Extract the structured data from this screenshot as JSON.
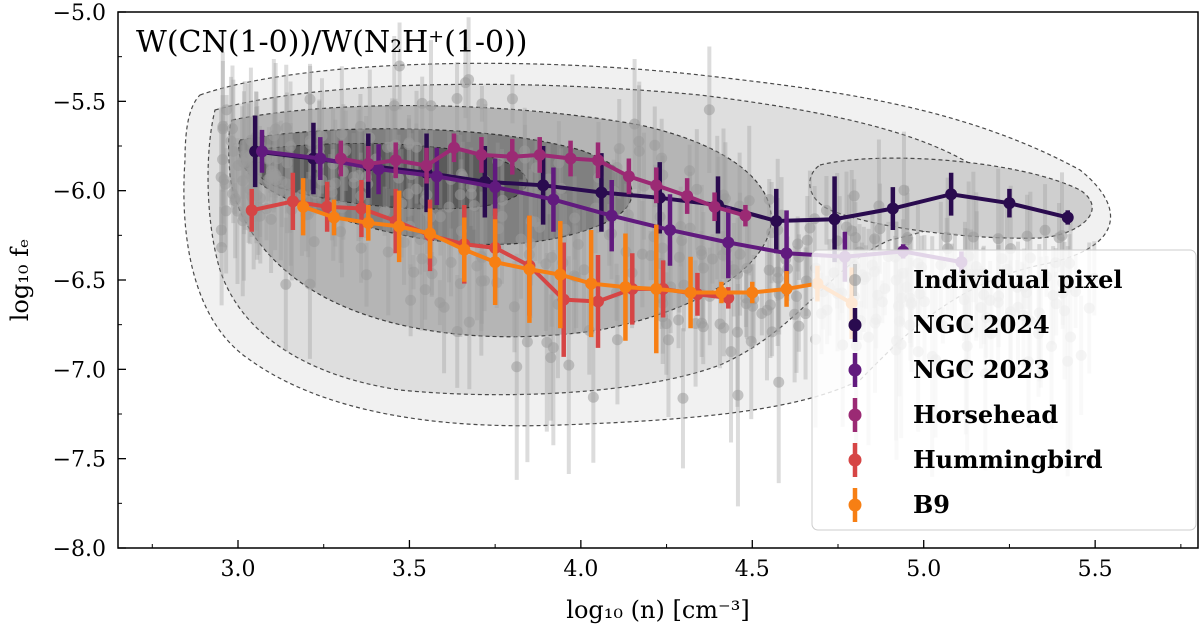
{
  "chart_data": {
    "type": "scatter",
    "title": "W(CN(1-0))/W(N₂H⁺(1-0))",
    "xlabel": "log₁₀ (n) [cm⁻³]",
    "ylabel": "log₁₀ fₑ",
    "xlim": [
      2.65,
      5.8
    ],
    "ylim": [
      -8.0,
      -5.0
    ],
    "xticks": [
      "3.0",
      "3.5",
      "4.0",
      "4.5",
      "5.0",
      "5.5"
    ],
    "yticks": [
      "−5.0",
      "−5.5",
      "−6.0",
      "−6.5",
      "−7.0",
      "−7.5",
      "−8.0"
    ],
    "legend_position": "lower-right",
    "pixels_name": "Individual pixel",
    "colors": {
      "NGC 2024": "#2a0b4f",
      "NGC 2023": "#611a7e",
      "Horsehead": "#9b2a74",
      "Hummingbird": "#d64545",
      "B9": "#f77f14",
      "pixels": "#9a9a9a"
    },
    "series": [
      {
        "name": "NGC 2024",
        "x": [
          3.05,
          3.22,
          3.38,
          3.55,
          3.72,
          3.89,
          4.06,
          4.23,
          4.4,
          4.57,
          4.74,
          4.91,
          5.08,
          5.25,
          5.42
        ],
        "y": [
          -5.78,
          -5.82,
          -5.86,
          -5.9,
          -5.95,
          -5.97,
          -6.01,
          -6.04,
          -6.08,
          -6.17,
          -6.16,
          -6.1,
          -6.02,
          -6.07,
          -6.15
        ],
        "err": [
          0.2,
          0.2,
          0.18,
          0.22,
          0.2,
          0.22,
          0.22,
          0.2,
          0.16,
          0.18,
          0.24,
          0.12,
          0.12,
          0.08,
          0.04
        ]
      },
      {
        "name": "NGC 2023",
        "x": [
          3.07,
          3.24,
          3.41,
          3.58,
          3.75,
          3.92,
          4.09,
          4.26,
          4.43,
          4.6,
          4.77,
          4.94,
          5.11
        ],
        "y": [
          -5.78,
          -5.82,
          -5.88,
          -5.92,
          -5.98,
          -6.05,
          -6.14,
          -6.22,
          -6.29,
          -6.35,
          -6.37,
          -6.34,
          -6.4
        ],
        "err": [
          0.12,
          0.12,
          0.14,
          0.16,
          0.16,
          0.18,
          0.2,
          0.2,
          0.2,
          0.24,
          0.14,
          0.04,
          0.06
        ]
      },
      {
        "name": "Horsehead",
        "x": [
          3.3,
          3.38,
          3.46,
          3.55,
          3.63,
          3.71,
          3.8,
          3.88,
          3.97,
          4.05,
          4.14,
          4.22,
          4.31,
          4.39,
          4.48
        ],
        "y": [
          -5.82,
          -5.85,
          -5.83,
          -5.86,
          -5.76,
          -5.8,
          -5.81,
          -5.8,
          -5.82,
          -5.83,
          -5.92,
          -5.97,
          -6.03,
          -6.09,
          -6.14
        ],
        "err": [
          0.1,
          0.1,
          0.1,
          0.1,
          0.08,
          0.1,
          0.1,
          0.1,
          0.1,
          0.1,
          0.1,
          0.1,
          0.1,
          0.08,
          0.06
        ]
      },
      {
        "name": "Hummingbird",
        "x": [
          3.04,
          3.16,
          3.26,
          3.36,
          3.46,
          3.56,
          3.66,
          3.75,
          3.85,
          3.95,
          4.05,
          4.15,
          4.24,
          4.34,
          4.43
        ],
        "y": [
          -6.11,
          -6.06,
          -6.09,
          -6.1,
          -6.17,
          -6.25,
          -6.3,
          -6.32,
          -6.42,
          -6.61,
          -6.62,
          -6.55,
          -6.55,
          -6.58,
          -6.6
        ],
        "err": [
          0.12,
          0.16,
          0.14,
          0.16,
          0.18,
          0.2,
          0.22,
          0.22,
          0.28,
          0.32,
          0.26,
          0.2,
          0.16,
          0.12,
          0.06
        ]
      },
      {
        "name": "B9",
        "x": [
          3.19,
          3.28,
          3.38,
          3.47,
          3.56,
          3.66,
          3.75,
          3.85,
          3.94,
          4.03,
          4.13,
          4.22,
          4.32,
          4.41,
          4.5,
          4.6,
          4.69,
          4.79
        ],
        "y": [
          -6.09,
          -6.15,
          -6.18,
          -6.2,
          -6.24,
          -6.33,
          -6.4,
          -6.44,
          -6.47,
          -6.52,
          -6.54,
          -6.55,
          -6.57,
          -6.57,
          -6.57,
          -6.55,
          -6.52,
          -6.63
        ],
        "err": [
          0.16,
          0.1,
          0.1,
          0.2,
          0.14,
          0.18,
          0.24,
          0.3,
          0.3,
          0.3,
          0.3,
          0.36,
          0.2,
          0.06,
          0.06,
          0.1,
          0.1,
          0.2
        ]
      }
    ]
  }
}
